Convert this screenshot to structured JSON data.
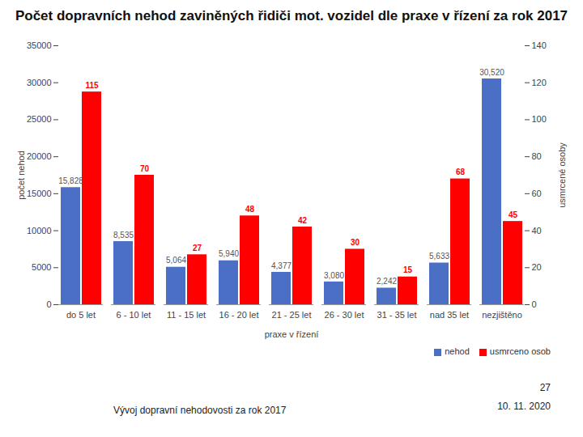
{
  "chart_data": {
    "type": "bar",
    "title": "Počet dopravních nehod zaviněných řidiči mot. vozidel dle praxe v řízení za rok 2017",
    "categories": [
      "do 5 let",
      "6 - 10 let",
      "11 - 15 let",
      "16 - 20 let",
      "21 - 25 let",
      "26 - 30 let",
      "31 - 35 let",
      "nad 35 let",
      "nezjištěno"
    ],
    "x_label": "praxe v řízení",
    "y_label": "počet nehod",
    "y2_label": "usmrcené osoby",
    "ylim": [
      0,
      35000
    ],
    "yticks": [
      0,
      5000,
      10000,
      15000,
      20000,
      25000,
      30000,
      35000
    ],
    "y2lim": [
      0,
      140
    ],
    "y2ticks": [
      0,
      20,
      40,
      60,
      80,
      100,
      120,
      140
    ],
    "data_labels": true,
    "legend": "bottom right",
    "series": [
      {
        "name": "nehod",
        "color": "#4a6fc4",
        "values": [
          15828,
          8535,
          5064,
          5940,
          4377,
          3080,
          2242,
          5633,
          30520
        ],
        "value_labels": [
          "15,828",
          "8,535",
          "5,064",
          "5,940",
          "4,377",
          "3,080",
          "2,242",
          "5,633",
          "30,520"
        ]
      },
      {
        "name": "usmrceno osob",
        "color": "#ff0000",
        "axis": "y2",
        "values": [
          115,
          70,
          27,
          48,
          42,
          30,
          15,
          68,
          45
        ]
      }
    ],
    "annotations": [
      "Vývoj dopravní nehodovosti za rok 2017",
      "27",
      "10. 11. 2020"
    ]
  }
}
